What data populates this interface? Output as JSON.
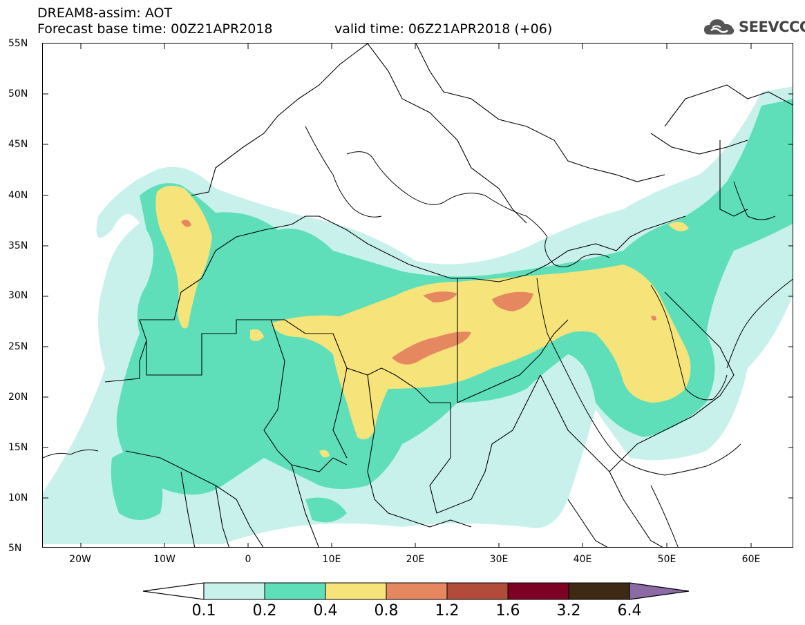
{
  "header": {
    "title": "DREAM8-assim: AOT",
    "base_time": "Forecast base time: 00Z21APR2018",
    "valid_time": "valid time: 06Z21APR2018 (+06)"
  },
  "logo": {
    "text": "SEEVCCC",
    "icon": "cloud-icon"
  },
  "axes": {
    "lat_labels": [
      "55N",
      "50N",
      "45N",
      "40N",
      "35N",
      "30N",
      "25N",
      "20N",
      "15N",
      "10N",
      "5N"
    ],
    "lon_labels": [
      "20W",
      "10W",
      "0",
      "10E",
      "20E",
      "30E",
      "40E",
      "50E",
      "60E"
    ],
    "lat_range": [
      5,
      55
    ],
    "lon_range": [
      -25,
      65
    ]
  },
  "colorbar": {
    "labels": [
      "0.1",
      "0.2",
      "0.4",
      "0.8",
      "1.2",
      "1.6",
      "3.2",
      "6.4"
    ],
    "colors": [
      "#ffffff",
      "#c8f1ec",
      "#5edfb9",
      "#f6e47b",
      "#e5875f",
      "#b24c3a",
      "#7d0025",
      "#3d2914",
      "#8b6aa6"
    ]
  },
  "fields": {
    "colors": {
      "low": "#c8f1ec",
      "moderate": "#5edfb9",
      "high": "#f6e47b",
      "very_high": "#e5875f",
      "extreme": "#b24c3a"
    }
  }
}
